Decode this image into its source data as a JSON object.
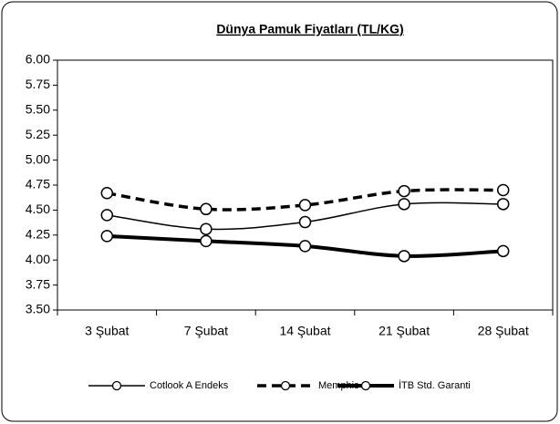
{
  "chart_data": {
    "type": "line",
    "title": "Dünya Pamuk Fiyatları (TL/KG)",
    "categories": [
      "3 Şubat",
      "7 Şubat",
      "14 Şubat",
      "21 Şubat",
      "28 Şubat"
    ],
    "series": [
      {
        "name": "Cotlook A Endeks",
        "color": "#000000",
        "values": [
          4.45,
          4.31,
          4.38,
          4.56,
          4.56
        ]
      },
      {
        "name": "Memphis",
        "color": "#000000",
        "values": [
          4.67,
          4.51,
          4.55,
          4.69,
          4.7
        ]
      },
      {
        "name": "İTB Std. Garanti",
        "color": "#000000",
        "values": [
          4.24,
          4.19,
          4.14,
          4.04,
          4.09
        ]
      }
    ],
    "ylim": [
      3.5,
      6.0
    ],
    "yticks": [
      {
        "value": 3.5,
        "label": "3.50"
      },
      {
        "value": 3.75,
        "label": "3.75"
      },
      {
        "value": 4.0,
        "label": "4.00"
      },
      {
        "value": 4.25,
        "label": "4.25"
      },
      {
        "value": 4.5,
        "label": "4.50"
      },
      {
        "value": 4.75,
        "label": "4.75"
      },
      {
        "value": 5.0,
        "label": "5.00"
      },
      {
        "value": 5.25,
        "label": "5.25"
      },
      {
        "value": 5.5,
        "label": "5.50"
      },
      {
        "value": 5.75,
        "label": "5.75"
      },
      {
        "value": 6.0,
        "label": "6.00"
      }
    ],
    "grid": false,
    "legend": "bottom"
  }
}
